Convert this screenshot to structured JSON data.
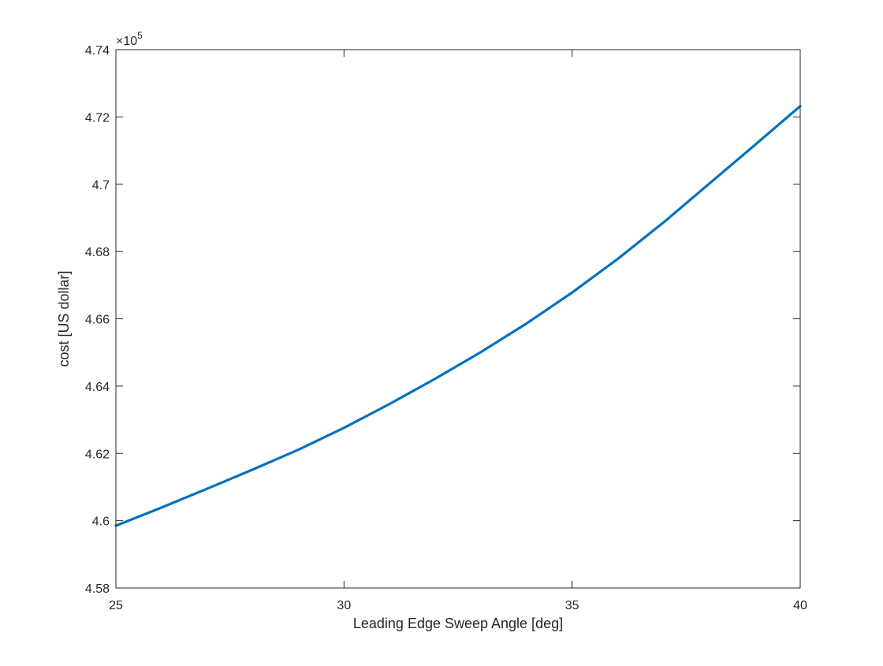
{
  "chart_data": {
    "type": "line",
    "title": "",
    "xlabel": "Leading Edge Sweep Angle [deg]",
    "ylabel": "cost [US dollar]",
    "xlim": [
      25,
      40
    ],
    "ylim": [
      4.58,
      4.74
    ],
    "y_exponent_label": "×10",
    "y_exponent_power": "5",
    "x_ticks": [
      25,
      30,
      35,
      40
    ],
    "x_tick_labels": [
      "25",
      "30",
      "35",
      "40"
    ],
    "y_ticks": [
      4.58,
      4.6,
      4.62,
      4.64,
      4.66,
      4.68,
      4.7,
      4.72,
      4.74
    ],
    "y_tick_labels": [
      "4.58",
      "4.6",
      "4.62",
      "4.64",
      "4.66",
      "4.68",
      "4.7",
      "4.72",
      "4.74"
    ],
    "grid": false,
    "legend": "none",
    "line_color": "#0072BD",
    "series": [
      {
        "x": [
          25,
          26,
          27,
          28,
          29,
          30,
          31,
          32,
          33,
          34,
          35,
          36,
          37,
          38,
          39,
          40
        ],
        "y": [
          4.5985,
          4.6039,
          4.6095,
          4.6152,
          4.6211,
          4.6276,
          4.6347,
          4.6422,
          4.6501,
          4.6586,
          4.6678,
          4.6778,
          4.6886,
          4.7001,
          4.7116,
          4.7232
        ]
      }
    ]
  }
}
